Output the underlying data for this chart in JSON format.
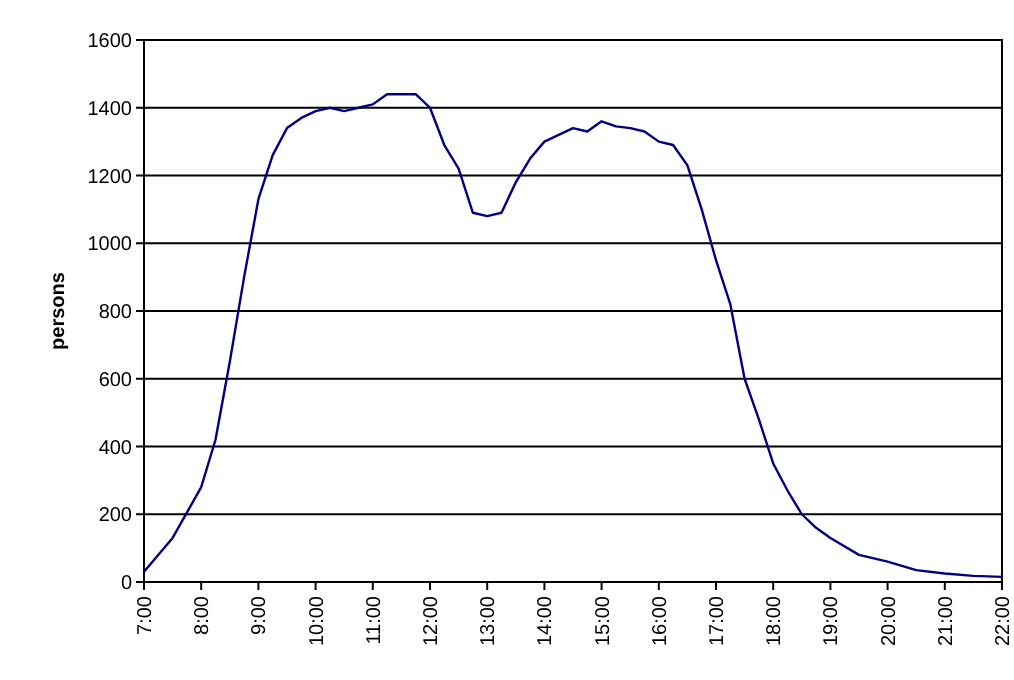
{
  "chart_data": {
    "type": "line",
    "ylabel": "persons",
    "grid": "y",
    "x": [
      7,
      7.5,
      8,
      8.25,
      8.5,
      8.75,
      9,
      9.25,
      9.5,
      9.75,
      10,
      10.25,
      10.5,
      10.75,
      11,
      11.25,
      11.75,
      12,
      12.25,
      12.5,
      12.75,
      13,
      13.25,
      13.5,
      13.75,
      14,
      14.25,
      14.5,
      14.75,
      15,
      15.25,
      15.5,
      15.75,
      16,
      16.25,
      16.5,
      16.75,
      17,
      17.25,
      17.5,
      17.75,
      18,
      18.25,
      18.5,
      18.75,
      19,
      19.5,
      20,
      20.5,
      21,
      21.5,
      22
    ],
    "series": [
      {
        "color": "#000080",
        "values": [
          30,
          130,
          280,
          420,
          650,
          900,
          1130,
          1260,
          1340,
          1370,
          1390,
          1400,
          1390,
          1400,
          1410,
          1440,
          1440,
          1400,
          1290,
          1220,
          1090,
          1080,
          1090,
          1180,
          1250,
          1300,
          1320,
          1340,
          1330,
          1360,
          1345,
          1340,
          1330,
          1300,
          1290,
          1230,
          1100,
          950,
          820,
          600,
          480,
          350,
          270,
          200,
          160,
          130,
          80,
          60,
          35,
          25,
          18,
          15
        ]
      }
    ],
    "xlim": [
      7,
      22
    ],
    "xticks": [
      {
        "value": 7,
        "label": "7:00"
      },
      {
        "value": 8,
        "label": "8:00"
      },
      {
        "value": 9,
        "label": "9:00"
      },
      {
        "value": 10,
        "label": "10:00"
      },
      {
        "value": 11,
        "label": "11:00"
      },
      {
        "value": 12,
        "label": "12:00"
      },
      {
        "value": 13,
        "label": "13:00"
      },
      {
        "value": 14,
        "label": "14:00"
      },
      {
        "value": 15,
        "label": "15:00"
      },
      {
        "value": 16,
        "label": "16:00"
      },
      {
        "value": 17,
        "label": "17:00"
      },
      {
        "value": 18,
        "label": "18:00"
      },
      {
        "value": 19,
        "label": "19:00"
      },
      {
        "value": 20,
        "label": "20:00"
      },
      {
        "value": 21,
        "label": "21:00"
      },
      {
        "value": 22,
        "label": "22:00"
      }
    ],
    "ylim": [
      0,
      1600
    ],
    "yticks": [
      0,
      200,
      400,
      600,
      800,
      1000,
      1200,
      1400,
      1600
    ],
    "marker": "none",
    "line_style": "solid"
  }
}
